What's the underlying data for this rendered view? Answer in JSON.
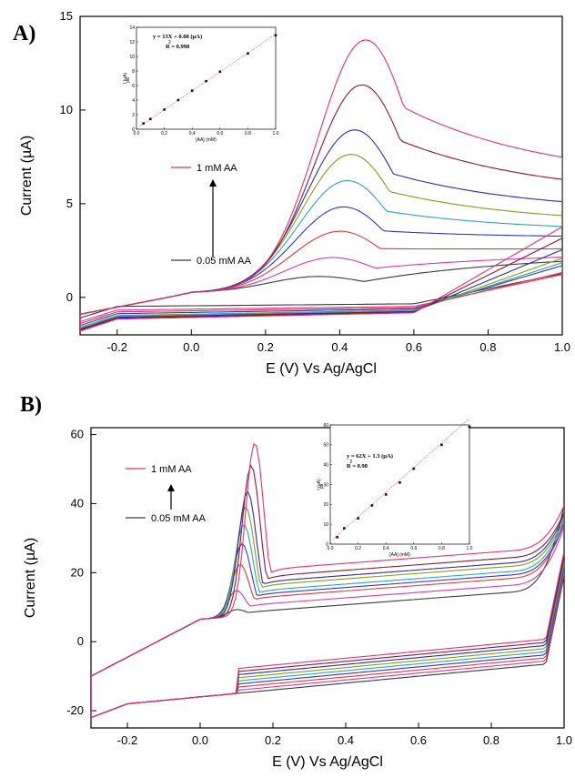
{
  "chart_data": [
    {
      "type": "line",
      "panel": "A)",
      "xlabel": "E (V) Vs Ag/AgCl",
      "ylabel": "Current (µA)",
      "xlim": [
        -0.3,
        1.0
      ],
      "ylim": [
        -2,
        15
      ],
      "xticks": [
        -0.2,
        0.0,
        0.2,
        0.4,
        0.6,
        0.8,
        1.0
      ],
      "xtick_labels": [
        "-0.2",
        "0.0",
        "0.2",
        "0.4",
        "0.6",
        "0.8",
        "1.0"
      ],
      "yticks": [
        0,
        5,
        10,
        15
      ],
      "ytick_labels": [
        "0",
        "5",
        "10",
        "15"
      ],
      "annotation_top": "1 mM AA",
      "annotation_bottom": "0.05 mM AA",
      "series": [
        {
          "color": "#3a3a3a",
          "peak_potential": 0.34,
          "peak_current": 1.1,
          "return_current": -0.5,
          "end_current": 2.9
        },
        {
          "color": "#d63aa8",
          "peak_potential": 0.38,
          "peak_current": 2.1,
          "return_current": -0.7,
          "end_current": 3.0
        },
        {
          "color": "#e03a3a",
          "peak_potential": 0.4,
          "peak_current": 3.5,
          "return_current": -0.8,
          "end_current": 3.3
        },
        {
          "color": "#2f36c8",
          "peak_potential": 0.41,
          "peak_current": 4.8,
          "return_current": -0.9,
          "end_current": 4.1
        },
        {
          "color": "#2aa6b8",
          "peak_potential": 0.42,
          "peak_current": 6.2,
          "return_current": -1.0,
          "end_current": 4.5
        },
        {
          "color": "#8a9a1a",
          "peak_potential": 0.43,
          "peak_current": 7.6,
          "return_current": -1.05,
          "end_current": 5.0
        },
        {
          "color": "#2a2ab8",
          "peak_potential": 0.44,
          "peak_current": 8.9,
          "return_current": -1.1,
          "end_current": 5.9
        },
        {
          "color": "#8a1a2a",
          "peak_potential": 0.46,
          "peak_current": 11.3,
          "return_current": -1.15,
          "end_current": 7.1
        },
        {
          "color": "#e0307a",
          "peak_potential": 0.47,
          "peak_current": 13.7,
          "return_current": -1.2,
          "end_current": 8.3
        }
      ],
      "inset": {
        "type": "scatter",
        "equation": "y = 13X + 0.08 (µA)",
        "r_squared": "R  = 0.998",
        "r_sup": "2",
        "xlabel": "[AA] (mM)",
        "ylabel": "I  (µA)",
        "ylabel_sub": "pa",
        "xlim": [
          0.0,
          1.0
        ],
        "ylim": [
          0,
          14
        ],
        "xticks": [
          0.0,
          0.2,
          0.4,
          0.6,
          0.8,
          1.0
        ],
        "xtick_labels": [
          "0.0",
          "0.2",
          "0.4",
          "0.6",
          "0.8",
          "1.0"
        ],
        "yticks": [
          0,
          2,
          4,
          6,
          8,
          10,
          12,
          14
        ],
        "ytick_labels": [
          "0",
          "2",
          "4",
          "6",
          "8",
          "10",
          "12",
          "14"
        ],
        "x": [
          0.05,
          0.1,
          0.2,
          0.3,
          0.4,
          0.5,
          0.6,
          0.8,
          1.0
        ],
        "y": [
          0.8,
          1.4,
          2.7,
          4.0,
          5.3,
          6.6,
          7.9,
          10.4,
          12.9
        ],
        "fit": {
          "slope": 13,
          "intercept": 0.08
        }
      }
    },
    {
      "type": "line",
      "panel": "B)",
      "xlabel": "E (V) Vs Ag/AgCl",
      "ylabel": "Current (µA)",
      "xlim": [
        -0.3,
        1.0
      ],
      "ylim": [
        -25,
        62
      ],
      "xticks": [
        -0.2,
        0.0,
        0.2,
        0.4,
        0.6,
        0.8,
        1.0
      ],
      "xtick_labels": [
        "-0.2",
        "0.0",
        "0.2",
        "0.4",
        "0.6",
        "0.8",
        "1.0"
      ],
      "yticks": [
        -20,
        0,
        20,
        40,
        60
      ],
      "ytick_labels": [
        "-20",
        "0",
        "20",
        "40",
        "60"
      ],
      "annotation_top": "1 mM AA",
      "annotation_bottom": "0.05 mM AA",
      "series": [
        {
          "color": "#3a3a3a",
          "peak_potential": 0.1,
          "peak_current": 10.0,
          "plateau_current": 9.0,
          "end_current": 46
        },
        {
          "color": "#d63aa8",
          "peak_potential": 0.1,
          "peak_current": 15.5,
          "plateau_current": 11.0,
          "end_current": 38
        },
        {
          "color": "#e03a3a",
          "peak_potential": 0.11,
          "peak_current": 23.0,
          "plateau_current": 13.0,
          "end_current": 37
        },
        {
          "color": "#2f36c8",
          "peak_potential": 0.115,
          "peak_current": 29.0,
          "plateau_current": 14.0,
          "end_current": 36
        },
        {
          "color": "#2aa6b8",
          "peak_potential": 0.12,
          "peak_current": 34.5,
          "plateau_current": 15.0,
          "end_current": 36
        },
        {
          "color": "#8a9a1a",
          "peak_potential": 0.125,
          "peak_current": 39.5,
          "plateau_current": 16.5,
          "end_current": 35
        },
        {
          "color": "#2a2ab8",
          "peak_potential": 0.13,
          "peak_current": 44.0,
          "plateau_current": 17.5,
          "end_current": 35
        },
        {
          "color": "#8a1a2a",
          "peak_potential": 0.14,
          "peak_current": 51.5,
          "plateau_current": 19.0,
          "end_current": 34
        },
        {
          "color": "#e0307a",
          "peak_potential": 0.15,
          "peak_current": 58.0,
          "plateau_current": 21.0,
          "end_current": 34
        }
      ],
      "inset": {
        "type": "scatter",
        "equation": "y = 62X + 1.3 (µA)",
        "r_squared": "R  = 0.98",
        "r_sup": "2",
        "xlabel": "[AA] (mM)",
        "ylabel": "I  (µA)",
        "ylabel_sub": "pa",
        "xlim": [
          0.0,
          1.0
        ],
        "ylim": [
          0,
          60
        ],
        "xticks": [
          0.0,
          0.2,
          0.4,
          0.6,
          0.8,
          1.0
        ],
        "xtick_labels": [
          "0.0",
          "0.2",
          "0.4",
          "0.6",
          "0.8",
          "1.0"
        ],
        "yticks": [
          0,
          10,
          20,
          30,
          40,
          50,
          60
        ],
        "ytick_labels": [
          "0",
          "10",
          "20",
          "30",
          "40",
          "50",
          "60"
        ],
        "x": [
          0.05,
          0.1,
          0.2,
          0.3,
          0.4,
          0.5,
          0.6,
          0.8,
          1.0
        ],
        "y": [
          3.5,
          8,
          13,
          19.5,
          25,
          31,
          38,
          50,
          59
        ],
        "fit": {
          "slope": 62,
          "intercept": 1.3
        }
      }
    }
  ]
}
